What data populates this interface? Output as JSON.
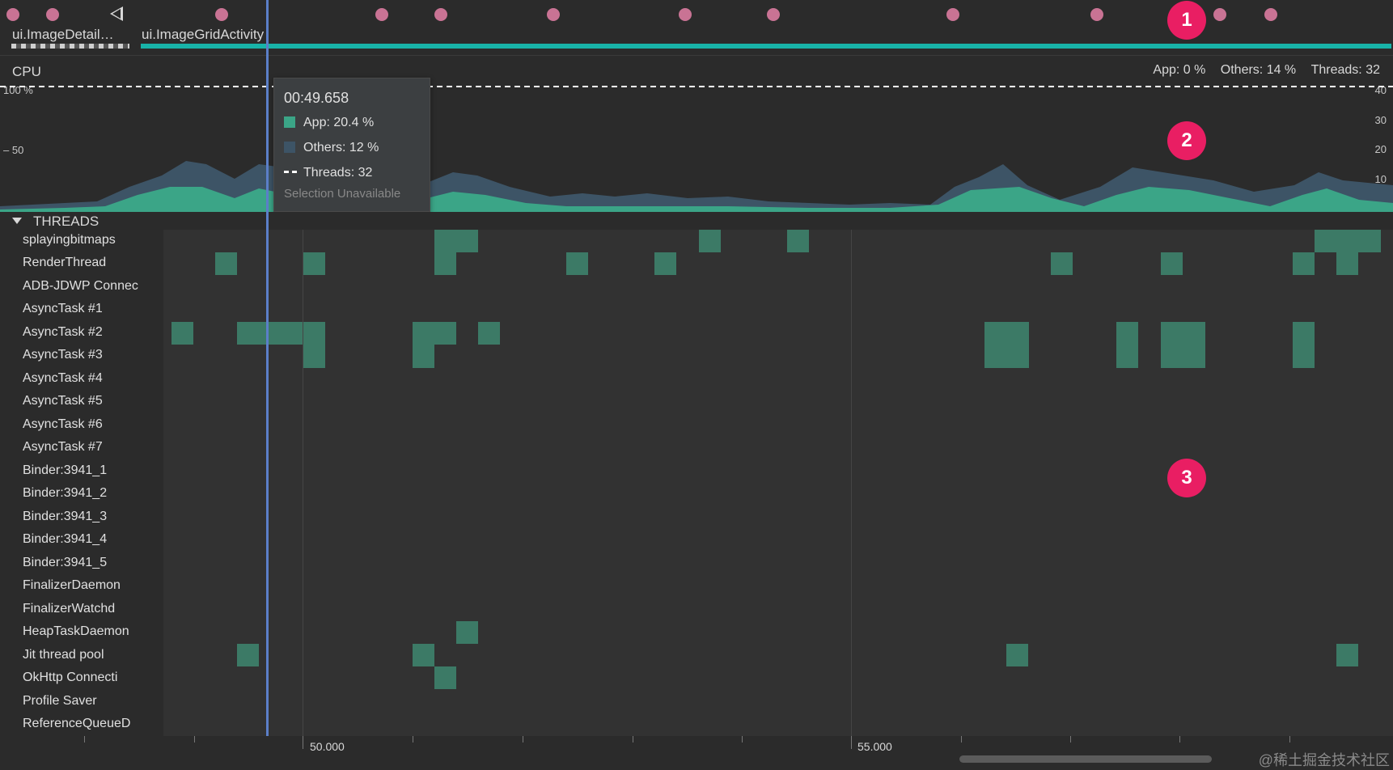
{
  "events": {
    "activities": [
      {
        "label": "ui.ImageDetail…"
      },
      {
        "label": "ui.ImageGridActivity"
      }
    ],
    "colors": {
      "event_dot": "#c97394",
      "activity_bar": "#18b3a8"
    }
  },
  "badges": [
    "1",
    "2",
    "3"
  ],
  "cpu": {
    "label": "CPU",
    "stats": {
      "app": "App: 0 %",
      "others": "Others: 14 %",
      "threads": "Threads: 32"
    },
    "left_ticks": [
      "100 %",
      "50"
    ],
    "right_ticks": [
      "40",
      "30",
      "20",
      "10"
    ],
    "colors": {
      "app": "#3ba587",
      "others": "#3d5466"
    }
  },
  "tooltip": {
    "time": "00:49.658",
    "app": "App: 20.4 %",
    "others": "Others: 12 %",
    "threads": "Threads: 32",
    "note": "Selection Unavailable"
  },
  "threads": {
    "title": "THREADS",
    "names": [
      "splayingbitmaps",
      "RenderThread",
      "ADB-JDWP Connec",
      "AsyncTask #1",
      "AsyncTask #2",
      "AsyncTask #3",
      "AsyncTask #4",
      "AsyncTask #5",
      "AsyncTask #6",
      "AsyncTask #7",
      "Binder:3941_1",
      "Binder:3941_2",
      "Binder:3941_3",
      "Binder:3941_4",
      "Binder:3941_5",
      "FinalizerDaemon",
      "FinalizerWatchd",
      "HeapTaskDaemon",
      "Jit thread pool",
      "OkHttp Connecti",
      "Profile Saver",
      "ReferenceQueueD"
    ]
  },
  "axis": {
    "labels": [
      "50.000",
      "55.000"
    ]
  },
  "watermark": "@稀土掘金技术社区"
}
